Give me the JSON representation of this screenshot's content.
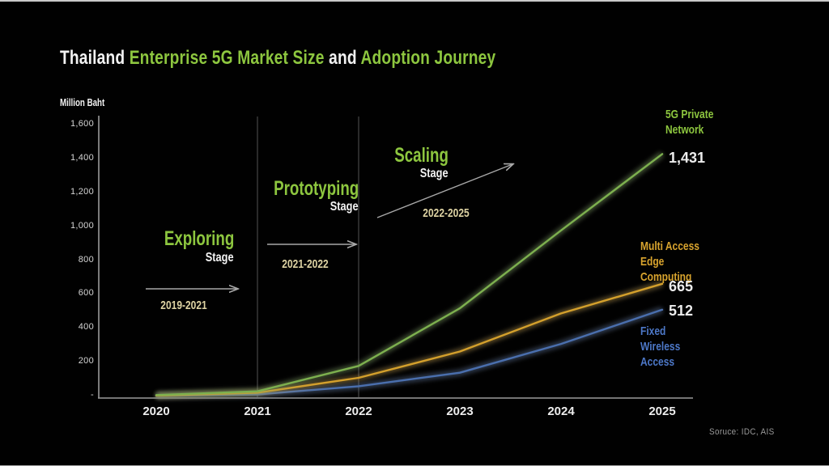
{
  "title": {
    "part1": "Thailand ",
    "part2": "Enterprise 5G Market Size ",
    "part3": "and ",
    "part4": "Adoption Journey"
  },
  "unit_label": "Million Baht",
  "source_label": "Soruce:  IDC, AIS",
  "stages": [
    {
      "name": "Exploring",
      "sub": "Stage",
      "range": "2019-2021"
    },
    {
      "name": "Prototyping",
      "sub": "Stage",
      "range": "2021-2022"
    },
    {
      "name": "Scaling",
      "sub": "Stage",
      "range": "2022-2025"
    }
  ],
  "colors": {
    "accent_green": "#8dc63f",
    "orange_label": "#d9a42e",
    "blue_label": "#4d78c8",
    "axis_gray": "#9a9a9a",
    "divider_gray": "#464646",
    "arrow_gray": "#a8a8a8"
  },
  "chart_data": {
    "type": "line",
    "title": "Thailand Enterprise 5G Market Size and Adoption Journey",
    "ylabel": "Million Baht",
    "ylim": [
      0,
      1600
    ],
    "grid": false,
    "legend_position": "right-of-line-ends",
    "x": [
      2020,
      2021,
      2022,
      2023,
      2024,
      2025
    ],
    "x_labels": [
      "2020",
      "2021",
      "2022",
      "2023",
      "2024",
      "2025"
    ],
    "y_ticks": [
      {
        "value": 1600,
        "label": "1,600"
      },
      {
        "value": 1400,
        "label": "1,400"
      },
      {
        "value": 1200,
        "label": "1,200"
      },
      {
        "value": 1000,
        "label": "1,000"
      },
      {
        "value": 800,
        "label": "800"
      },
      {
        "value": 600,
        "label": "600"
      },
      {
        "value": 400,
        "label": "400"
      },
      {
        "value": 200,
        "label": "200"
      },
      {
        "value": 0,
        "label": "-"
      }
    ],
    "stage_divider_years": [
      2021,
      2022
    ],
    "series": [
      {
        "name": "5G Private Network",
        "color": "#7db04f",
        "label_color": "#8dc63f",
        "values": [
          8,
          30,
          180,
          520,
          980,
          1431
        ],
        "end_value": 1431,
        "end_label": "1,431"
      },
      {
        "name": "Multi Access Edge Computing",
        "color": "#d4a02c",
        "label_color": "#d9a42e",
        "values": [
          5,
          22,
          110,
          265,
          490,
          665
        ],
        "end_value": 665,
        "end_label": "665"
      },
      {
        "name": "Fixed Wireless Access",
        "color": "#4a6fae",
        "label_color": "#4d78c8",
        "values": [
          3,
          12,
          60,
          140,
          310,
          512
        ],
        "end_value": 512,
        "end_label": "512"
      }
    ]
  }
}
